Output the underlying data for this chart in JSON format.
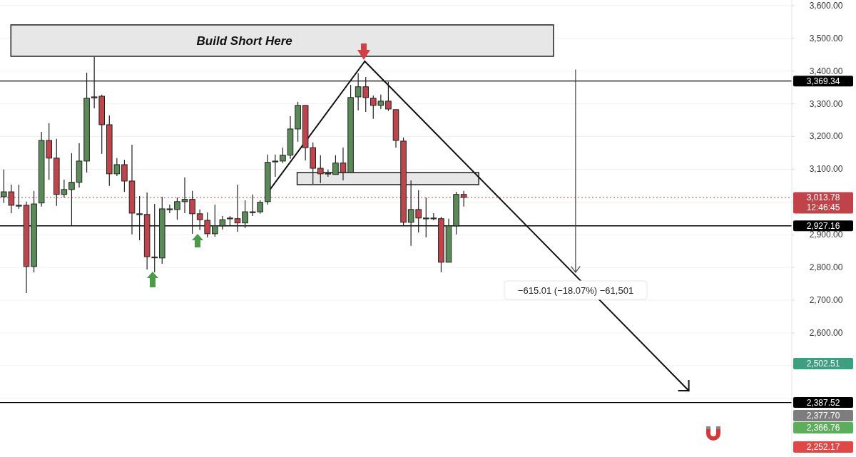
{
  "chart_data": {
    "type": "candlestick",
    "categories": [
      null,
      null,
      null,
      null,
      null,
      null,
      null,
      null,
      null,
      null,
      null,
      null,
      null,
      null,
      null,
      null,
      null,
      null,
      null,
      null,
      null,
      null,
      null,
      null,
      null,
      null,
      null,
      null,
      null,
      null,
      null,
      null,
      null,
      null,
      null,
      null,
      null,
      null,
      null,
      null,
      null,
      null,
      null,
      null,
      null,
      null,
      null,
      null,
      null,
      null,
      null,
      null,
      null,
      null,
      null,
      null,
      null,
      null,
      null,
      null,
      null,
      null,
      null,
      null,
      null,
      null,
      null,
      null,
      null,
      null,
      null,
      null,
      null,
      null,
      null,
      null,
      null,
      null,
      null,
      null,
      null,
      null,
      null,
      null,
      null,
      null,
      null,
      null,
      null,
      null,
      null,
      null,
      null,
      null,
      null,
      null,
      null,
      null,
      null,
      null,
      null,
      null,
      null,
      null,
      null
    ],
    "ohlc": [
      [
        3016,
        3099,
        2997,
        3031
      ],
      [
        3031,
        3053,
        2966,
        2990
      ],
      [
        2990,
        3053,
        2979,
        2990
      ],
      [
        2990,
        3001,
        2722,
        2803
      ],
      [
        2803,
        3034,
        2785,
        2994
      ],
      [
        2997,
        3214,
        2986,
        3188
      ],
      [
        3188,
        3241,
        3068,
        3134
      ],
      [
        3134,
        3193,
        2988,
        3023
      ],
      [
        3023,
        3068,
        3014,
        3038
      ],
      [
        3038,
        3149,
        2927,
        3060
      ],
      [
        3060,
        3180,
        3044,
        3125
      ],
      [
        3125,
        3395,
        3090,
        3317
      ],
      [
        3321,
        3443,
        3286,
        3318
      ],
      [
        3323,
        3328,
        3147,
        3236
      ],
      [
        3236,
        3264,
        3049,
        3086
      ],
      [
        3086,
        3134,
        3079,
        3114
      ],
      [
        3114,
        3129,
        3031,
        3064
      ],
      [
        3064,
        3175,
        2901,
        2966
      ],
      [
        2964,
        3018,
        2883,
        2964
      ],
      [
        2962,
        3029,
        2794,
        2833
      ],
      [
        2832,
        2994,
        2785,
        2830
      ],
      [
        2829,
        3016,
        2811,
        2979
      ],
      [
        2979,
        2992,
        2966,
        2979
      ],
      [
        2977,
        3014,
        2946,
        3001
      ],
      [
        3001,
        3075,
        2966,
        3008
      ],
      [
        3008,
        3034,
        2903,
        2964
      ],
      [
        2964,
        2977,
        2914,
        2946
      ],
      [
        2944,
        2968,
        2892,
        2903
      ],
      [
        2903,
        2992,
        2894,
        2927
      ],
      [
        2927,
        2957,
        2916,
        2946
      ],
      [
        2951,
        2957,
        2927,
        2951
      ],
      [
        2949,
        3053,
        2909,
        2936
      ],
      [
        2936,
        3005,
        2920,
        2970
      ],
      [
        2970,
        3023,
        2957,
        2970
      ],
      [
        2970,
        3005,
        2964,
        2999
      ],
      [
        3001,
        3145,
        2992,
        3121
      ],
      [
        3125,
        3145,
        3077,
        3125
      ],
      [
        3125,
        3166,
        3119,
        3143
      ],
      [
        3143,
        3262,
        3132,
        3223
      ],
      [
        3223,
        3306,
        3184,
        3295
      ],
      [
        3295,
        3295,
        3127,
        3166
      ],
      [
        3166,
        3182,
        3055,
        3103
      ],
      [
        3103,
        3143,
        3058,
        3086
      ],
      [
        3088,
        3099,
        3077,
        3088
      ],
      [
        3084,
        3143,
        3084,
        3119
      ],
      [
        3119,
        3166,
        3066,
        3090
      ],
      [
        3090,
        3358,
        3090,
        3319
      ],
      [
        3321,
        3393,
        3280,
        3352
      ],
      [
        3352,
        3382,
        3275,
        3319
      ],
      [
        3317,
        3325,
        3254,
        3295
      ],
      [
        3295,
        3328,
        3284,
        3308
      ],
      [
        3308,
        3367,
        3278,
        3284
      ],
      [
        3282,
        3282,
        3166,
        3188
      ],
      [
        3186,
        3197,
        2927,
        2938
      ],
      [
        2938,
        3066,
        2866,
        2977
      ],
      [
        2977,
        3036,
        2907,
        2951
      ],
      [
        2951,
        3014,
        2892,
        2951
      ],
      [
        2951,
        2966,
        2944,
        2951
      ],
      [
        2949,
        2955,
        2785,
        2816
      ],
      [
        2816,
        2949,
        2816,
        2927
      ],
      [
        2927,
        3031,
        2901,
        3023
      ],
      [
        3023,
        3034,
        2986,
        3014
      ],
      null,
      null,
      null,
      null,
      null,
      null,
      null,
      null,
      null,
      null,
      null,
      null,
      null,
      null,
      null,
      null,
      null,
      null,
      null,
      null,
      null,
      null,
      null,
      null,
      null,
      null,
      null,
      null,
      null,
      null,
      null,
      null,
      null,
      null,
      null,
      null,
      null,
      null,
      null,
      null,
      null,
      null,
      null
    ],
    "colors": [
      "#5b8a59",
      "#bf454c",
      "#5b8a59",
      "#bf454c",
      "#5b8a59",
      "#5b8a59",
      "#bf454c",
      "#bf454c",
      "#5b8a59",
      "#5b8a59",
      "#5b8a59",
      "#5b8a59",
      "#bf454c",
      "#bf454c",
      "#bf454c",
      "#5b8a59",
      "#bf454c",
      "#bf454c",
      "#5b8a59",
      "#bf454c",
      "#bf454c",
      "#5b8a59",
      "#5b8a59",
      "#5b8a59",
      "#5b8a59",
      "#bf454c",
      "#bf454c",
      "#bf454c",
      "#5b8a59",
      "#5b8a59",
      "#5b8a59",
      "#bf454c",
      "#5b8a59",
      "#5b8a59",
      "#5b8a59",
      "#5b8a59",
      "#5b8a59",
      "#5b8a59",
      "#5b8a59",
      "#5b8a59",
      "#bf454c",
      "#bf454c",
      "#bf454c",
      "#5b8a59",
      "#5b8a59",
      "#bf454c",
      "#5b8a59",
      "#5b8a59",
      "#bf454c",
      "#bf454c",
      "#5b8a59",
      "#bf454c",
      "#bf454c",
      "#bf454c",
      "#5b8a59",
      "#bf454c",
      "#5b8a59",
      "#5b8a59",
      "#bf454c",
      "#5b8a59",
      "#5b8a59",
      "#bf454c",
      null,
      null,
      null,
      null,
      null,
      null,
      null,
      null,
      null,
      null,
      null,
      null,
      null,
      null,
      null,
      null,
      null,
      null,
      null,
      null,
      null,
      null,
      null,
      null,
      null,
      null,
      null,
      null,
      null,
      null,
      null,
      null,
      null,
      null,
      null,
      null,
      null,
      null,
      null,
      null,
      null,
      null,
      null
    ],
    "ylim": [
      2221,
      3617
    ],
    "yticks": [
      {
        "value": 2400,
        "label": null
      },
      {
        "value": 2500,
        "label": null
      },
      {
        "value": 2600,
        "label": "2,600.00"
      },
      {
        "value": 2700,
        "label": "2,700.00"
      },
      {
        "value": 2800,
        "label": "2,800.00"
      },
      {
        "value": 2900,
        "label": "2,900.00"
      },
      {
        "value": 3000,
        "label": null
      },
      {
        "value": 3100,
        "label": "3,100.00"
      },
      {
        "value": 3200,
        "label": "3,200.00"
      },
      {
        "value": 3300,
        "label": "3,300.00"
      },
      {
        "value": 3400,
        "label": "3,400.00"
      },
      {
        "value": 3500,
        "label": "3,500.00"
      },
      {
        "value": 3600,
        "label": "3,600.00"
      }
    ],
    "grid": "y",
    "tick_labels": "y",
    "ref_lines": [
      {
        "axis": "y",
        "value": 3369.34,
        "label": "3,369.34",
        "color": "#000000"
      },
      {
        "axis": "y",
        "value": 3013.78,
        "label": "3,013.78",
        "color": "#c0434a",
        "line_style": "dotted"
      },
      {
        "axis": "y",
        "value": 2927.16,
        "label": "2,927.16",
        "color": "#000000"
      },
      {
        "axis": "y",
        "value": 2387.52,
        "label": "2,387.52",
        "color": "#000000"
      }
    ],
    "bands": [
      {
        "axis": "y",
        "from": 3445,
        "to": 3541,
        "label": "Build Short Here",
        "color": "#e3e3e3"
      },
      {
        "axis": "y",
        "from": 3053,
        "to": 3090,
        "color": "#e3e3e3"
      }
    ],
    "annotations": [
      "12:46:45",
      "−615.01 (−18.07%) −61,501",
      "2,502.51",
      "2,377.70",
      "2,366.76",
      "2,252.17"
    ]
  }
}
